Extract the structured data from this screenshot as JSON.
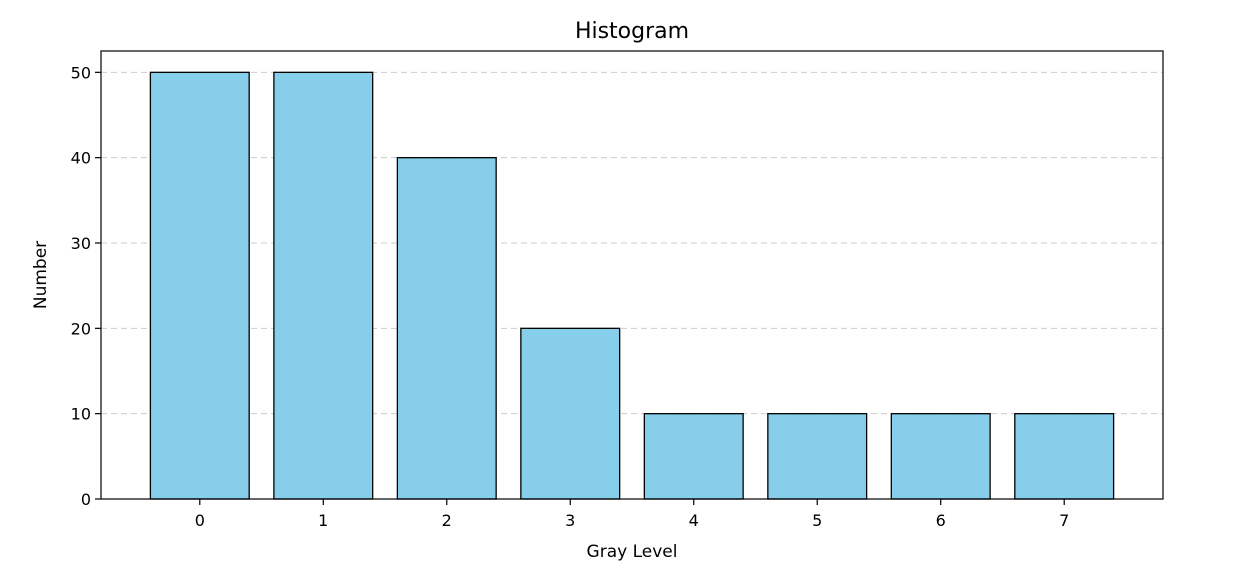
{
  "chart_data": {
    "type": "bar",
    "title": "Histogram",
    "xlabel": "Gray Level",
    "ylabel": "Number",
    "categories": [
      "0",
      "1",
      "2",
      "3",
      "4",
      "5",
      "6",
      "7"
    ],
    "values": [
      50,
      50,
      40,
      20,
      10,
      10,
      10,
      10
    ],
    "ylim": [
      0,
      52.5
    ],
    "yticks": [
      "0",
      "10",
      "20",
      "30",
      "40",
      "50"
    ],
    "grid": "y-dashed",
    "colors": {
      "bar_fill": "#87ceeb",
      "bar_edge": "#000000",
      "grid": "#cccccc"
    }
  }
}
